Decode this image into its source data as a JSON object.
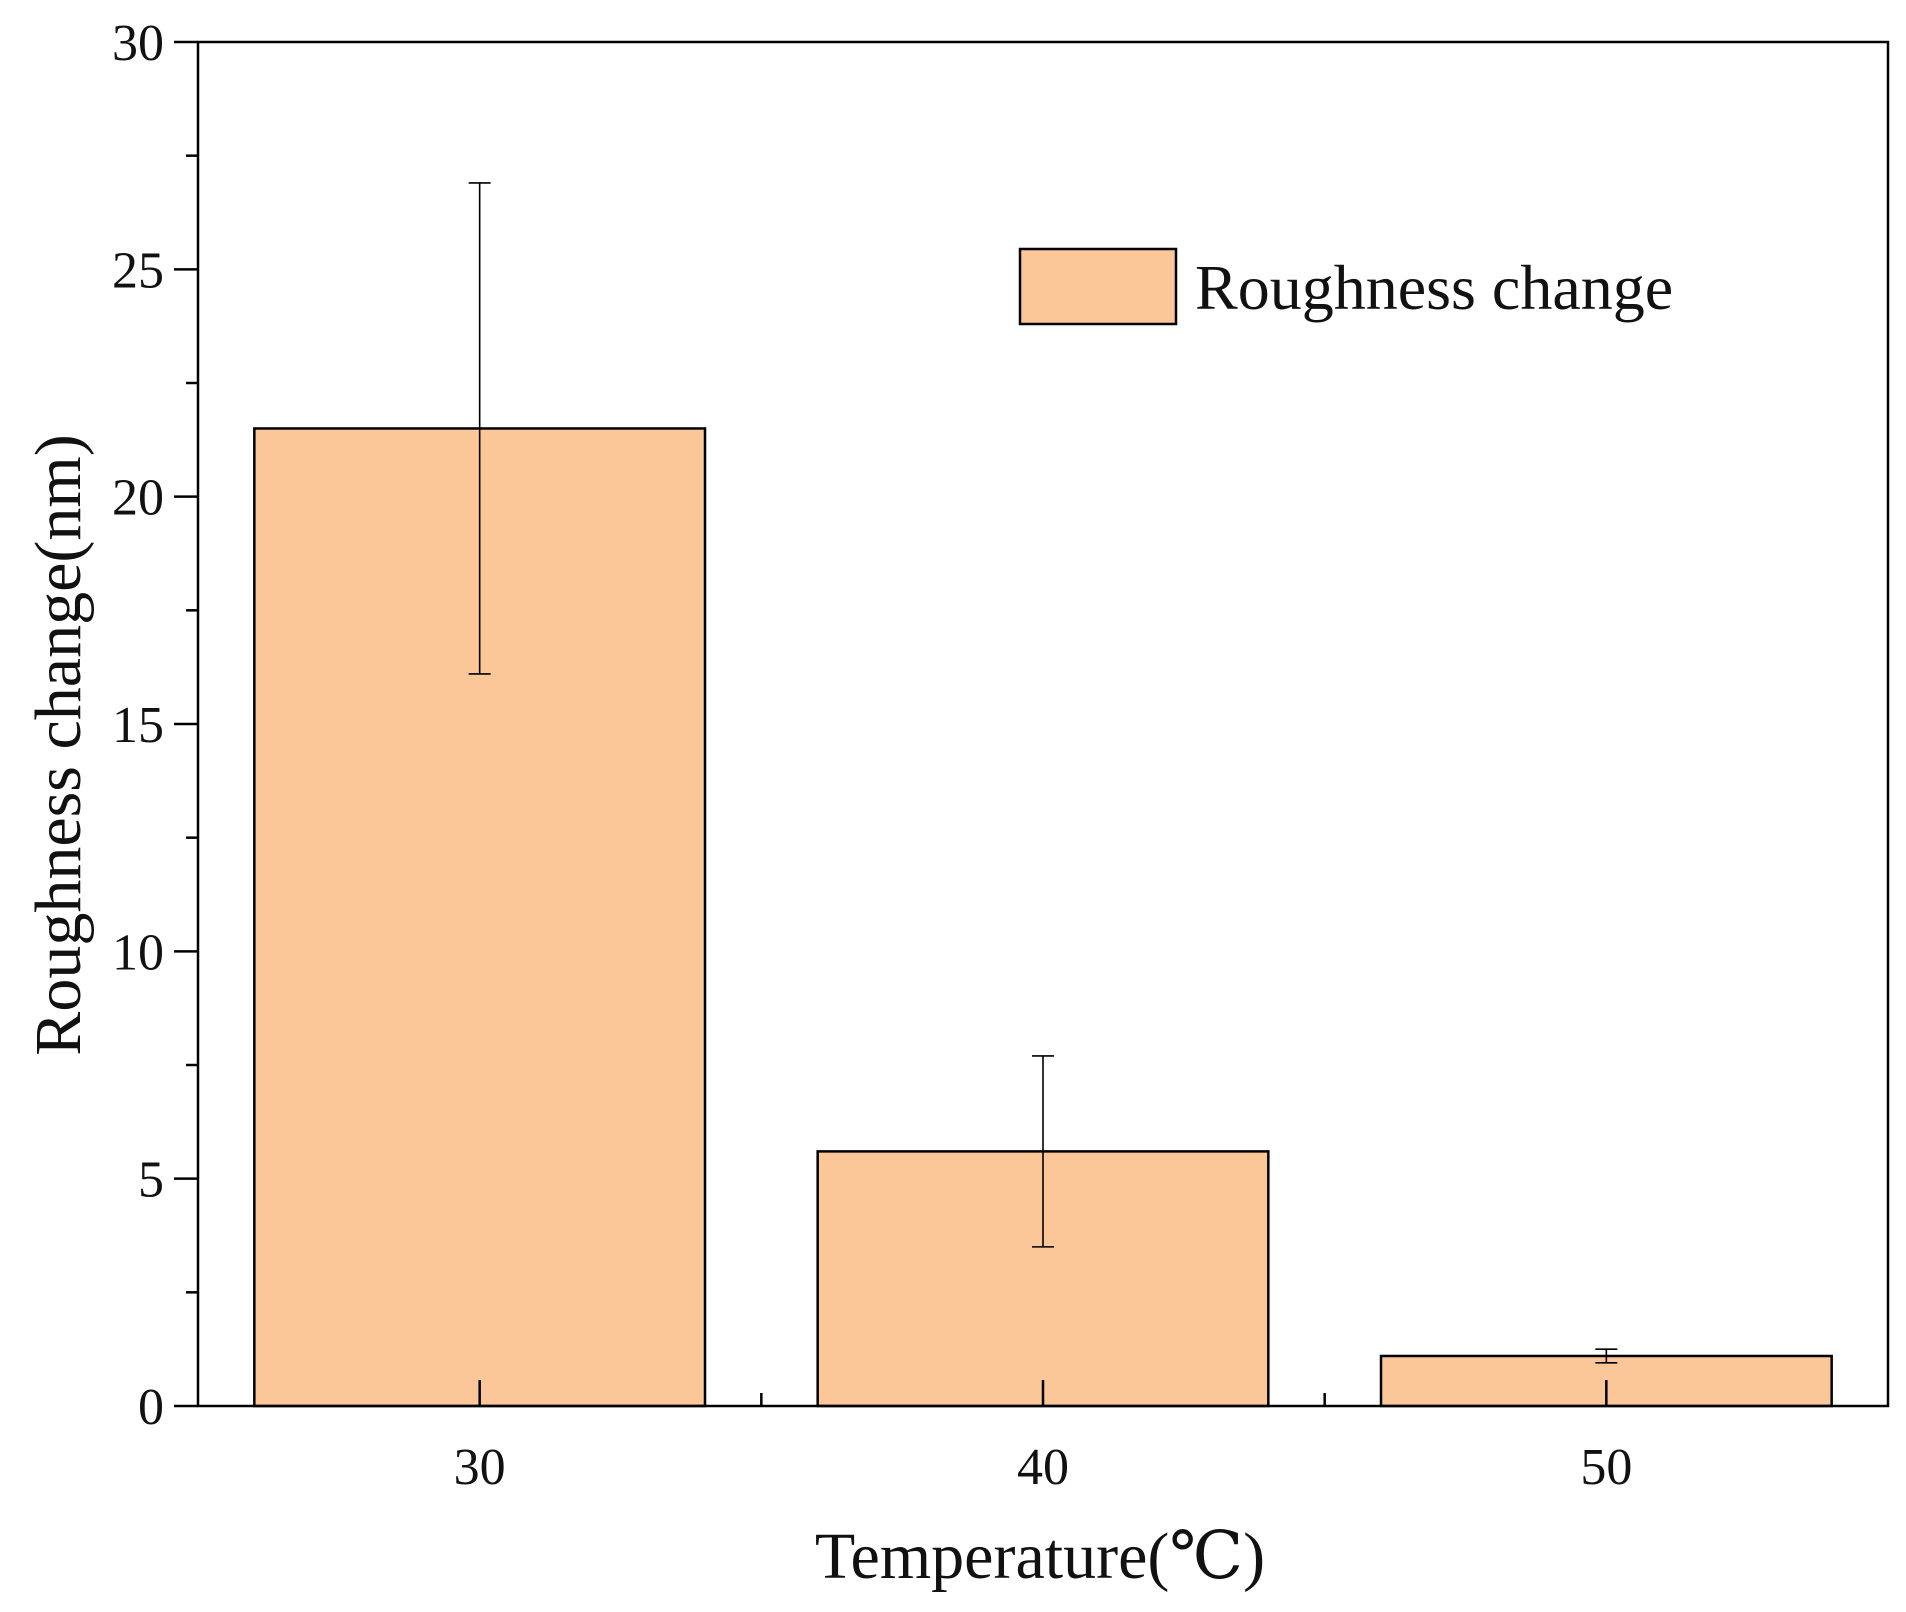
{
  "chart_data": {
    "type": "bar",
    "title": "",
    "xlabel": "Temperature(℃)",
    "ylabel": "Roughness change(nm)",
    "categories": [
      "30",
      "40",
      "50"
    ],
    "series": [
      {
        "name": "Roughness change",
        "values": [
          21.5,
          5.6,
          1.1
        ],
        "error_low": [
          16.1,
          3.5,
          0.95
        ],
        "error_high": [
          26.9,
          7.7,
          1.25
        ],
        "fill_color": "#FBC798",
        "edge_color": "#000000"
      }
    ],
    "ylim": [
      0,
      30
    ],
    "y_ticks": [
      "0",
      "5",
      "10",
      "15",
      "20",
      "25",
      "30"
    ],
    "y_minor_step": 2.5,
    "grid": false,
    "legend": {
      "position": "top-right",
      "label": "Roughness change"
    }
  }
}
